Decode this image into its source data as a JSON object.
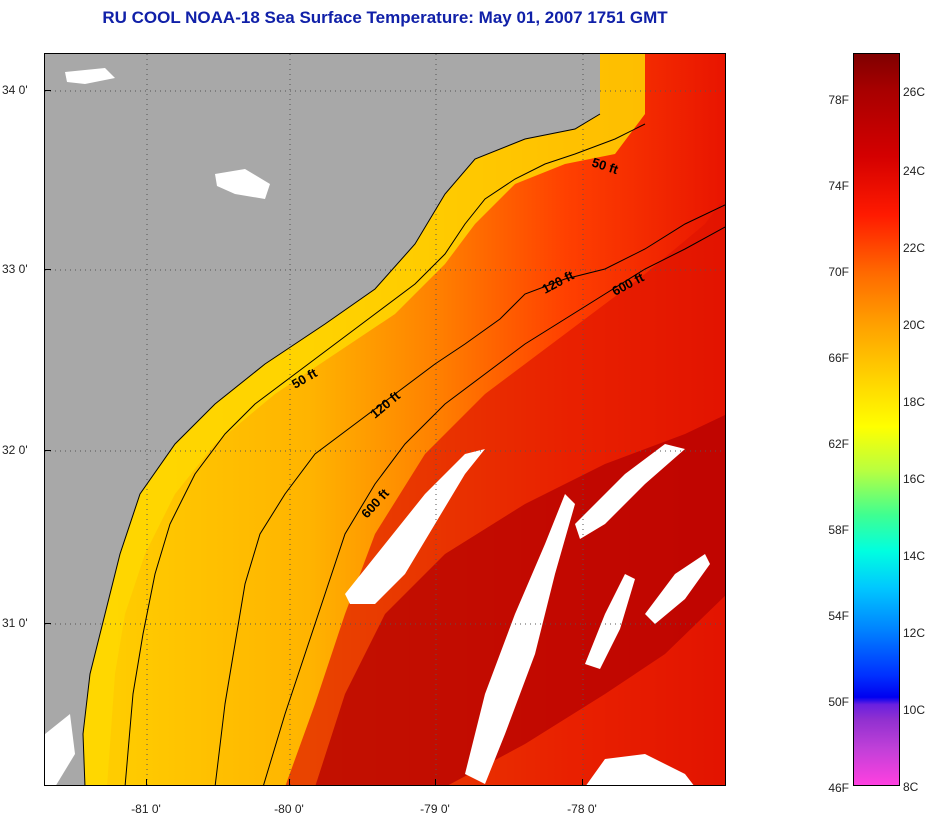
{
  "title": "RU COOL  NOAA-18  Sea Surface Temperature:  May 01, 2007 1751 GMT",
  "map": {
    "latitude_labels": [
      "34 0'",
      "33 0'",
      "32 0'",
      "31 0'"
    ],
    "longitude_labels": [
      "-81 0'",
      "-80 0'",
      "-79 0'",
      "-78 0'"
    ],
    "contours": [
      "50 ft",
      "120 ft",
      "600 ft"
    ],
    "contour_labels": [
      "50 ft",
      "120 ft",
      "600 ft",
      "50 ft",
      "120 ft",
      "600 ft"
    ],
    "colors": {
      "land": "#a8a8a8",
      "cloud": "#ffffff",
      "nearshore": "#ffd400",
      "shelf": "#ffb000",
      "outer_shelf": "#ff6000",
      "gulf_stream": "#c80000"
    }
  },
  "colorbar": {
    "fahrenheit_labels": [
      "78F",
      "74F",
      "70F",
      "66F",
      "62F",
      "58F",
      "54F",
      "50F",
      "46F"
    ],
    "celsius_labels": [
      "26C",
      "24C",
      "22C",
      "20C",
      "18C",
      "16C",
      "14C",
      "12C",
      "10C",
      "8C"
    ]
  }
}
